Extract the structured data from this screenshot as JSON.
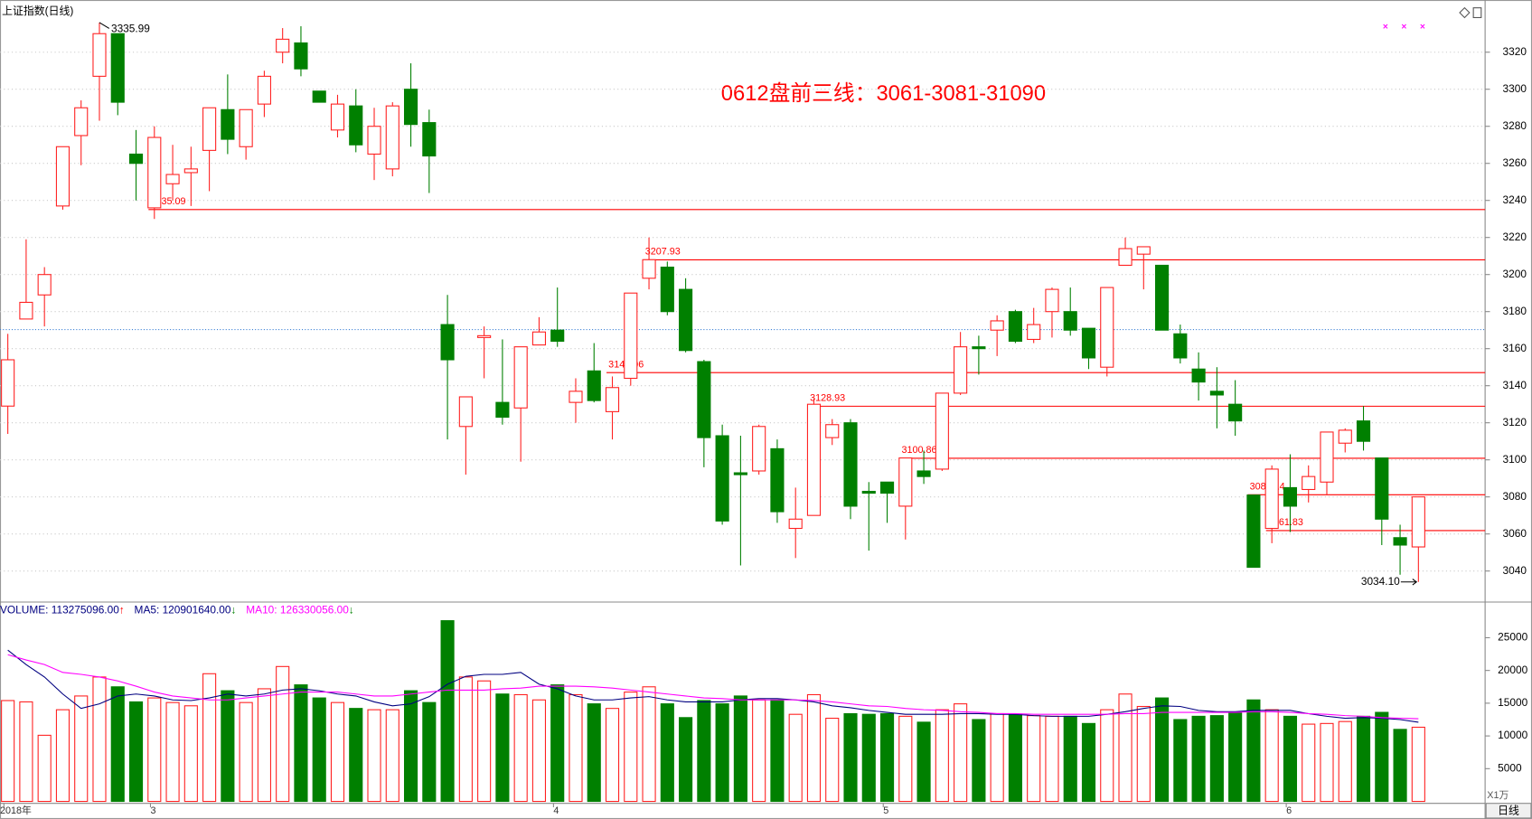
{
  "title": "上证指数(日线)",
  "tab": "日线",
  "chart_data": [
    {
      "type": "candlestick",
      "categories": [
        "2018年",
        null,
        null,
        null,
        null,
        null,
        null,
        null,
        "3",
        null,
        null,
        null,
        null,
        null,
        null,
        null,
        null,
        null,
        null,
        null,
        null,
        null,
        null,
        null,
        null,
        null,
        null,
        null,
        null,
        null,
        "4",
        null,
        null,
        null,
        null,
        null,
        null,
        null,
        null,
        null,
        null,
        null,
        null,
        null,
        null,
        null,
        null,
        null,
        "5",
        null,
        null,
        null,
        null,
        null,
        null,
        null,
        null,
        null,
        null,
        null,
        null,
        null,
        null,
        null,
        null,
        null,
        null,
        null,
        null,
        null,
        "6",
        null,
        null,
        null,
        null,
        null,
        null,
        null
      ],
      "open": [
        3129,
        3176,
        3189,
        3237,
        3275,
        3307,
        3330,
        3265,
        3236,
        3249,
        3255,
        3267,
        3289,
        3269,
        3292,
        3320,
        3325,
        3299,
        3278,
        3291,
        3265,
        3257,
        3300,
        3282,
        3173,
        3118,
        3166,
        3131,
        3128,
        3162,
        3170,
        3131,
        3148,
        3126,
        3144,
        3198,
        3204,
        3192,
        3153,
        3113,
        3093,
        3094,
        3106,
        3063,
        3070,
        3112,
        3120,
        3083,
        3088,
        3075,
        3094,
        3095,
        3136,
        3161,
        3170,
        3180,
        3165,
        3180,
        3180,
        3171,
        3150,
        3205,
        3211,
        3205,
        3168,
        3149,
        3137,
        3130,
        3081,
        3063,
        3085,
        3084,
        3088,
        3109,
        3121,
        3101,
        3058,
        3053
      ],
      "high": [
        3168,
        3219,
        3204,
        3269,
        3294,
        3335.99,
        3330,
        3278,
        3280,
        3270,
        3269,
        3290,
        3308,
        3289,
        3310,
        3333,
        3334,
        3299,
        3297,
        3300,
        3290,
        3293,
        3314,
        3289,
        3189,
        3134,
        3172,
        3165,
        3161,
        3177,
        3193,
        3144,
        3163,
        3145,
        3190,
        3220,
        3207,
        3198,
        3154,
        3119,
        3113,
        3119,
        3111,
        3085,
        3133,
        3122,
        3122,
        3088,
        3088,
        3101,
        3105,
        3136,
        3169,
        3167,
        3178,
        3181,
        3182,
        3193,
        3193,
        3171,
        3193,
        3220,
        3215,
        3205,
        3173,
        3158,
        3150,
        3143,
        3081,
        3097,
        3103,
        3097,
        3115,
        3117,
        3129,
        3101,
        3065,
        3080
      ],
      "low": [
        3114,
        3176,
        3172,
        3235,
        3259,
        3283,
        3286,
        3240,
        3230,
        3240,
        3237,
        3245,
        3265,
        3262,
        3285,
        3314,
        3307,
        3293,
        3274,
        3266,
        3251,
        3253,
        3269,
        3244,
        3111,
        3092,
        3144,
        3119,
        3099,
        3162,
        3161,
        3120,
        3131,
        3111,
        3140,
        3192,
        3178,
        3158,
        3096,
        3065,
        3043,
        3092,
        3066,
        3047,
        3070,
        3108,
        3068,
        3051,
        3066,
        3057,
        3087,
        3094,
        3135,
        3146,
        3156,
        3163,
        3163,
        3166,
        3167,
        3149,
        3145,
        3205,
        3192,
        3170,
        3152,
        3132,
        3117,
        3113,
        3042,
        3055,
        3061,
        3077,
        3081,
        3104,
        3105,
        3054,
        3038,
        3034.1
      ],
      "close": [
        3154,
        3185,
        3200,
        3269,
        3290,
        3330,
        3293,
        3260,
        3274,
        3254,
        3257,
        3290,
        3273,
        3289,
        3307,
        3327,
        3311,
        3293,
        3292,
        3270,
        3280,
        3291,
        3281,
        3264,
        3154,
        3134,
        3167,
        3123,
        3161,
        3169,
        3164,
        3137,
        3132,
        3139,
        3190,
        3208,
        3180,
        3159,
        3112,
        3067,
        3092,
        3118,
        3072,
        3068,
        3130,
        3119,
        3075,
        3082,
        3082,
        3101,
        3091,
        3136,
        3161,
        3160,
        3175,
        3164,
        3173,
        3192,
        3170,
        3155,
        3193,
        3214,
        3215,
        3170,
        3155,
        3142,
        3135,
        3121,
        3042,
        3095,
        3075,
        3091,
        3115,
        3116,
        3110,
        3068,
        3054,
        3080
      ],
      "up_color": "#ff2020",
      "down_color": "#008000",
      "ylim": [
        3025,
        3345
      ],
      "yticks": [
        3040,
        3060,
        3080,
        3100,
        3120,
        3140,
        3160,
        3180,
        3200,
        3220,
        3240,
        3260,
        3280,
        3300,
        3320
      ],
      "grid": true,
      "levels": [
        3235.09,
        3207.93,
        3147.06,
        3128.93,
        3100.86,
        3081.14,
        3061.83
      ],
      "level_color": "#ff0000",
      "reference_line": 3170.3,
      "high_mark": 3335.99,
      "low_mark": {
        "value": 3034.1,
        "label": "3034.10"
      },
      "annotation": "0612盘前三线：3061-3081-31090"
    },
    {
      "type": "volume",
      "legend": [
        {
          "text": "VOLUME: 113275096.00",
          "arrow": "↑",
          "color": "#000080",
          "arrow_color": "#ff0000"
        },
        {
          "text": "MA5: 120901640.00",
          "arrow": "↓",
          "color": "#000080",
          "arrow_color": "#008000"
        },
        {
          "text": "MA10: 126330056.00",
          "arrow": "↓",
          "color": "#ff00ff",
          "arrow_color": "#008000"
        }
      ],
      "values": [
        15400,
        15200,
        10100,
        14000,
        16100,
        19000,
        17500,
        15200,
        15800,
        15100,
        14600,
        19500,
        16900,
        15100,
        17200,
        20600,
        17800,
        15800,
        15100,
        14200,
        14000,
        14000,
        16900,
        15100,
        27600,
        19000,
        18400,
        16400,
        16300,
        15500,
        17800,
        16300,
        14900,
        14200,
        16700,
        17500,
        14900,
        12800,
        15400,
        14900,
        16100,
        15500,
        15500,
        13300,
        16300,
        12700,
        13400,
        13300,
        13400,
        13000,
        12100,
        14000,
        14900,
        12500,
        13400,
        13300,
        13100,
        13000,
        13000,
        11900,
        14000,
        16400,
        14500,
        15800,
        12500,
        13000,
        13100,
        13600,
        15500,
        14000,
        13000,
        11800,
        11900,
        12200,
        13000,
        13600,
        11000,
        11328
      ],
      "series": [
        {
          "color": "#000080",
          "values": [
            23100,
            20900,
            19000,
            16400,
            14200,
            14900,
            16100,
            16400,
            16100,
            15500,
            15400,
            15800,
            16400,
            16100,
            16400,
            17000,
            17200,
            16900,
            16400,
            16100,
            15200,
            14600,
            14900,
            16000,
            17900,
            19100,
            19400,
            19400,
            19700,
            17900,
            17200,
            16100,
            15500,
            15500,
            15800,
            16000,
            15500,
            15200,
            15200,
            15200,
            15500,
            15700,
            15700,
            15500,
            15200,
            14600,
            14300,
            13900,
            13600,
            13300,
            13300,
            13300,
            13400,
            13400,
            13300,
            13300,
            13100,
            13000,
            13000,
            13000,
            13300,
            13700,
            14200,
            14600,
            14500,
            13900,
            13700,
            13700,
            13900,
            13900,
            13900,
            13400,
            13000,
            12700,
            12800,
            12700,
            12500,
            12090
          ]
        },
        {
          "color": "#ff00ff",
          "values": [
            22400,
            21600,
            20900,
            19700,
            19400,
            19000,
            18400,
            17600,
            16700,
            16100,
            15800,
            15500,
            15500,
            15800,
            16100,
            16400,
            16700,
            16700,
            16700,
            16400,
            16100,
            16100,
            16400,
            16700,
            17000,
            17000,
            17000,
            17200,
            17300,
            17600,
            17600,
            17600,
            17500,
            17300,
            17000,
            16700,
            16400,
            16100,
            15800,
            15700,
            15500,
            15500,
            15500,
            15500,
            15400,
            15200,
            14900,
            14600,
            14500,
            14200,
            14000,
            13900,
            13700,
            13600,
            13400,
            13400,
            13300,
            13300,
            13300,
            13300,
            13300,
            13400,
            13400,
            13600,
            13600,
            13600,
            13600,
            13600,
            13700,
            13700,
            13600,
            13400,
            13300,
            13100,
            13000,
            12800,
            12700,
            12633
          ]
        }
      ],
      "ylim": [
        0,
        30000
      ],
      "yticks": [
        5000,
        10000,
        15000,
        20000,
        25000
      ],
      "unit_label": "X1万"
    }
  ]
}
